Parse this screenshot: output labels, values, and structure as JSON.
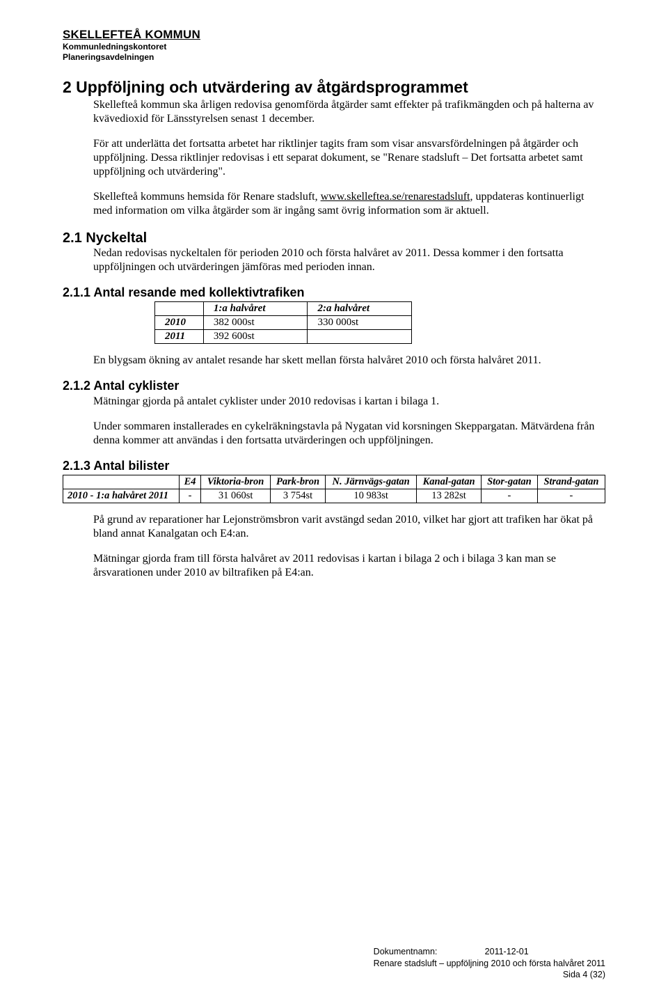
{
  "header": {
    "org": "SKELLEFTEÅ KOMMUN",
    "dept1": "Kommunledningskontoret",
    "dept2": "Planeringsavdelningen"
  },
  "section2": {
    "number_title": "2 Uppföljning och utvärdering av åtgärdsprogrammet",
    "p1": "Skellefteå kommun ska årligen redovisa genomförda åtgärder samt effekter på trafikmängden och på halterna av kvävedioxid för Länsstyrelsen senast 1 december.",
    "p2": "För att underlätta det fortsatta arbetet har riktlinjer tagits fram som visar ansvarsfördelningen på åtgärder och uppföljning. Dessa riktlinjer redovisas i ett separat dokument, se \"Renare stadsluft – Det fortsatta arbetet samt uppföljning och utvärdering\".",
    "p3_a": "Skellefteå kommuns hemsida för Renare stadsluft, ",
    "p3_link": "www.skelleftea.se/renarestadsluft",
    "p3_b": ", uppdateras kontinuerligt med information om vilka åtgärder som är ingång samt övrig information som är aktuell."
  },
  "section21": {
    "title": "2.1 Nyckeltal",
    "p1": "Nedan redovisas nyckeltalen för perioden 2010 och första halvåret av 2011. Dessa kommer i den fortsatta uppföljningen och utvärderingen jämföras med perioden innan."
  },
  "section211": {
    "title": "2.1.1 Antal resande med kollektivtrafiken",
    "table": {
      "headers": [
        "",
        "1:a halvåret",
        "2:a halvåret"
      ],
      "rows": [
        {
          "year": "2010",
          "h1": "382 000st",
          "h2": "330 000st"
        },
        {
          "year": "2011",
          "h1": "392 600st",
          "h2": ""
        }
      ]
    },
    "p1": "En blygsam ökning av antalet resande har skett mellan första halvåret 2010 och första halvåret 2011."
  },
  "section212": {
    "title": "2.1.2 Antal cyklister",
    "p1": "Mätningar gjorda på antalet cyklister under 2010 redovisas i kartan i bilaga 1.",
    "p2": "Under sommaren installerades en cykelräkningstavla på Nygatan vid korsningen Skeppargatan. Mätvärdena från denna kommer att användas i den fortsatta utvärderingen och uppföljningen."
  },
  "section213": {
    "title": "2.1.3 Antal bilister",
    "table": {
      "headers": [
        "",
        "E4",
        "Viktoria-bron",
        "Park-bron",
        "N. Järnvägs-gatan",
        "Kanal-gatan",
        "Stor-gatan",
        "Strand-gatan"
      ],
      "row": {
        "label": "2010 - 1:a halvåret 2011",
        "values": [
          "-",
          "31 060st",
          "3 754st",
          "10 983st",
          "13 282st",
          "-",
          "-"
        ]
      }
    },
    "p1": "På grund av reparationer har Lejonströmsbron varit avstängd sedan 2010, vilket har gjort att trafiken har ökat på bland annat Kanalgatan och E4:an.",
    "p2": "Mätningar gjorda fram till första halvåret av 2011 redovisas i kartan i bilaga 2 och i bilaga 3 kan man se årsvarationen under 2010 av biltrafiken på E4:an."
  },
  "footer": {
    "lbl": "Dokumentnamn:",
    "date": "2011-12-01",
    "docname": "Renare stadsluft – uppföljning 2010 och första halvåret 2011",
    "page": "Sida 4 (32)"
  }
}
